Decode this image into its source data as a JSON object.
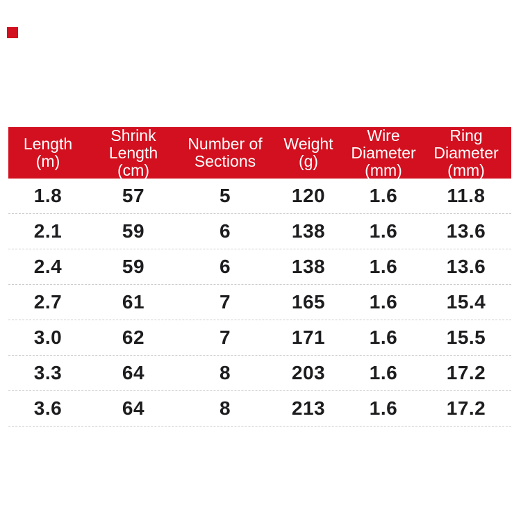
{
  "page": {
    "background": "#ffffff",
    "accent_red": "#d2101f",
    "body_text_color": "#1d1d1f",
    "separator_color": "#cccccc",
    "header_text_color": "#ffffff"
  },
  "table": {
    "header": [
      {
        "name": "Length",
        "unit": "(m)"
      },
      {
        "name": "Shrink Length",
        "unit": "(cm)"
      },
      {
        "name": "Number of Sections",
        "unit": ""
      },
      {
        "name": "Weight",
        "unit": "(g)"
      },
      {
        "name": "Wire Diameter",
        "unit": "(mm)"
      },
      {
        "name": "Ring Diameter",
        "unit": "(mm)"
      }
    ]
  },
  "chart_data": {
    "type": "table",
    "title": "",
    "columns": [
      "Length (m)",
      "Shrink Length (cm)",
      "Number of Sections",
      "Weight (g)",
      "Wire Diameter (mm)",
      "Ring Diameter (mm)"
    ],
    "rows": [
      [
        "1.8",
        "57",
        "5",
        "120",
        "1.6",
        "11.8"
      ],
      [
        "2.1",
        "59",
        "6",
        "138",
        "1.6",
        "13.6"
      ],
      [
        "2.4",
        "59",
        "6",
        "138",
        "1.6",
        "13.6"
      ],
      [
        "2.7",
        "61",
        "7",
        "165",
        "1.6",
        "15.4"
      ],
      [
        "3.0",
        "62",
        "7",
        "171",
        "1.6",
        "15.5"
      ],
      [
        "3.3",
        "64",
        "8",
        "203",
        "1.6",
        "17.2"
      ],
      [
        "3.6",
        "64",
        "8",
        "213",
        "1.6",
        "17.2"
      ]
    ],
    "layout": {
      "header_background": "#d2101f",
      "header_text_color": "#ffffff",
      "row_separator": "dashed",
      "grid": "horizontal-only"
    }
  }
}
